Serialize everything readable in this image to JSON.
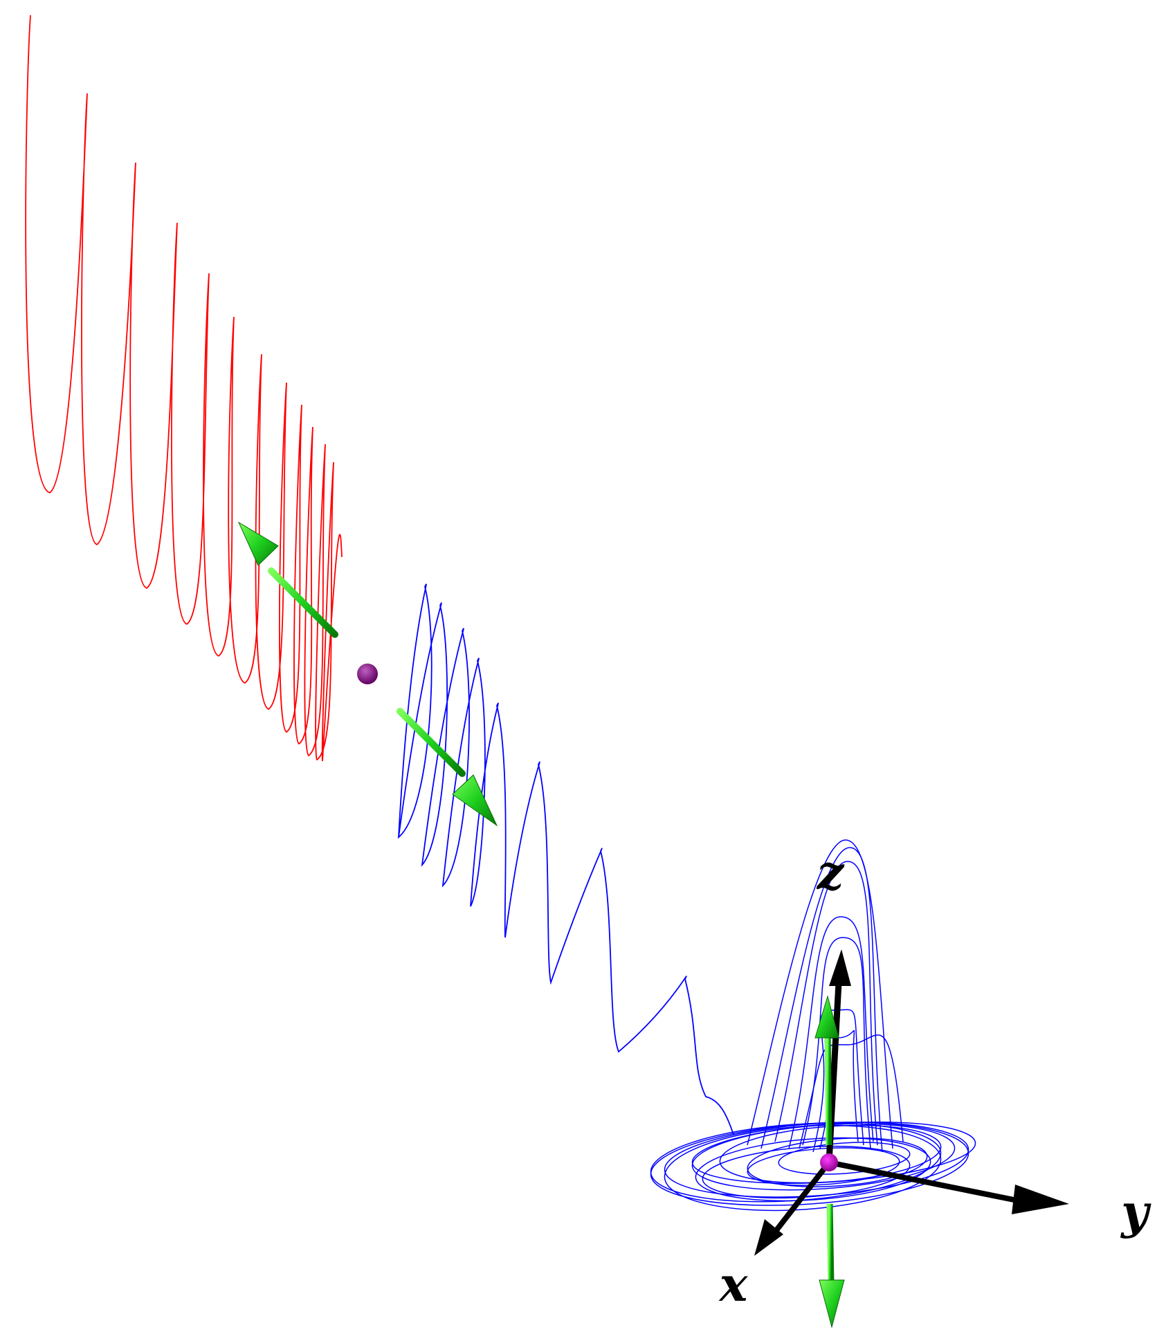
{
  "figure": {
    "background": "#ffffff",
    "axes": {
      "x_label": "x",
      "y_label": "y",
      "z_label": "z",
      "color": "#000000"
    },
    "trajectories": [
      {
        "id": "unstable-branch",
        "color": "#ff0000"
      },
      {
        "id": "stable-branch",
        "color": "#0000ff"
      }
    ],
    "equilibria": [
      {
        "id": "saddle-point",
        "color": "#800080"
      },
      {
        "id": "origin-point",
        "color": "#c000c0"
      }
    ],
    "eigenvector_color": "#00cc00"
  }
}
